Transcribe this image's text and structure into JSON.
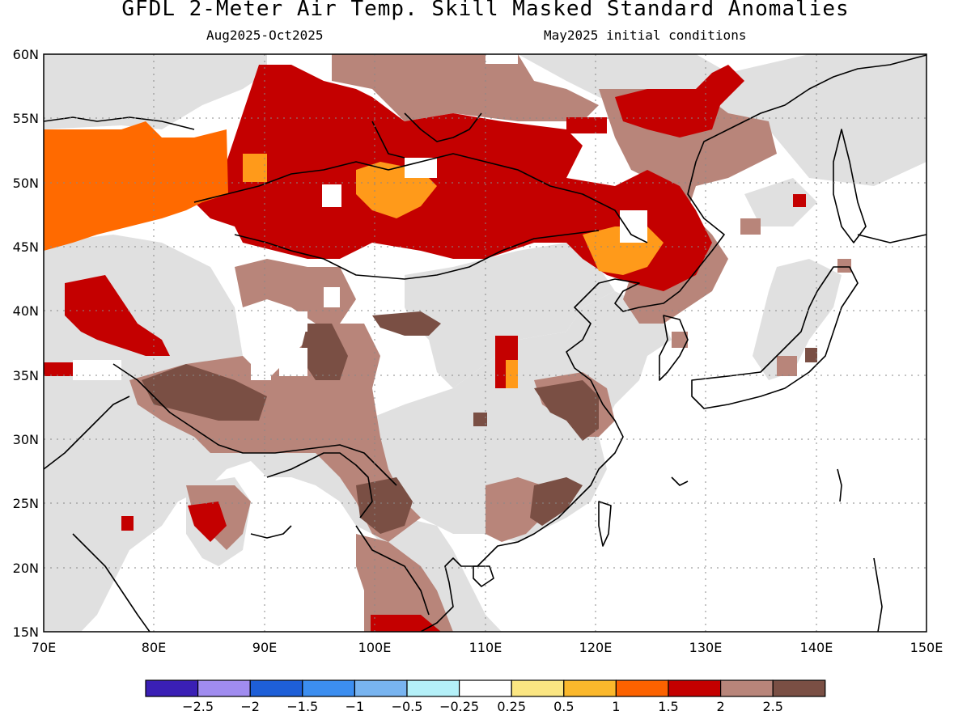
{
  "title": "GFDL 2-Meter Air Temp. Skill Masked Standard Anomalies",
  "subtitle_left": "Aug2025-Oct2025",
  "subtitle_right": "May2025 initial conditions",
  "map": {
    "lon_range": [
      70,
      150
    ],
    "lat_range": [
      15,
      60
    ],
    "lat_ticks": [
      "15N",
      "20N",
      "25N",
      "30N",
      "35N",
      "40N",
      "45N",
      "50N",
      "55N",
      "60N"
    ],
    "lon_ticks": [
      "70E",
      "80E",
      "90E",
      "100E",
      "110E",
      "120E",
      "130E",
      "140E",
      "150E"
    ],
    "grid": "dotted"
  },
  "legend": {
    "colors": [
      "#3a1fb5",
      "#a08cf0",
      "#1e5fd8",
      "#3c8ef0",
      "#78b4f0",
      "#b4f0f8",
      "#ffffff",
      "#fbe682",
      "#fbb82c",
      "#fc6200",
      "#c40000",
      "#b8857a",
      "#7a4f44"
    ],
    "labels": [
      "-2.5",
      "-2",
      "-1.5",
      "-1",
      "-0.5",
      "-0.25",
      "0.25",
      "0.5",
      "1",
      "1.5",
      "2",
      "2.5"
    ]
  },
  "colors": {
    "neutral": "#e0e0e0",
    "orange": "#ff6a00",
    "light_orange": "#ff9a1a",
    "red": "#c40000",
    "tan": "#b8857a",
    "brown": "#7a4f44"
  }
}
